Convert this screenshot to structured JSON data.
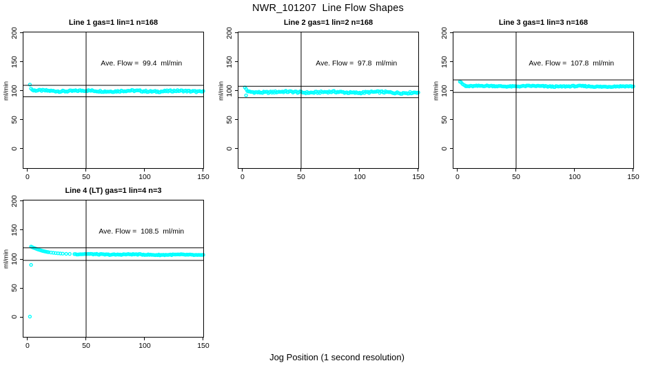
{
  "chart_data": {
    "type": "scatter",
    "title": "NWR_101207  Line Flow Shapes",
    "xlabel": "Jog Position (1 second resolution)",
    "ylabel": "ml/min",
    "point_color": "#00ffff",
    "axis_color": "#000000",
    "background_color": "#ffffff",
    "grid": false,
    "x_ticks": [
      0,
      50,
      100,
      150
    ],
    "y_ticks": [
      0,
      50,
      100,
      150,
      200
    ],
    "xlim": [
      -4.1,
      150.6
    ],
    "ylim": [
      -35,
      202
    ],
    "vline_x": 50,
    "panels": [
      {
        "title": "Line 1 gas=1 lin=1 n=168",
        "ave_flow_label": "Ave. Flow =  99.4  ml/min",
        "ave_flow_ml_min": 99.4,
        "n": 168,
        "ref_line_upper": 109.3,
        "ref_line_lower": 89.5,
        "start_points": [
          [
            2,
            110.5
          ],
          [
            3,
            103.5
          ],
          [
            4,
            101.5
          ],
          [
            5,
            100.5
          ]
        ],
        "outliers": [],
        "band": {
          "x0": 5,
          "x1": 150,
          "y_start": 99.8,
          "y_end": 99.0,
          "jitter": 1.6
        }
      },
      {
        "title": "Line 2 gas=1 lin=2 n=168",
        "ave_flow_label": "Ave. Flow =  97.8  ml/min",
        "ave_flow_ml_min": 97.8,
        "n": 168,
        "ref_line_upper": 107.6,
        "ref_line_lower": 88.0,
        "start_points": [
          [
            2,
            105.5
          ],
          [
            3,
            103.0
          ],
          [
            4,
            99.5
          ],
          [
            5,
            98.5
          ]
        ],
        "outliers": [
          [
            3,
            92
          ]
        ],
        "band": {
          "x0": 5,
          "x1": 150,
          "y_start": 97.8,
          "y_end": 96.8,
          "jitter": 1.8
        }
      },
      {
        "title": "Line 3 gas=1 lin=3 n=168",
        "ave_flow_label": "Ave. Flow =  107.8  ml/min",
        "ave_flow_ml_min": 107.8,
        "n": 168,
        "ref_line_upper": 118.6,
        "ref_line_lower": 97.0,
        "start_points": [
          [
            2,
            115.5
          ],
          [
            3,
            114.5
          ],
          [
            4,
            112.0
          ],
          [
            5,
            110.5
          ],
          [
            6,
            109.3
          ],
          [
            7,
            108.5
          ]
        ],
        "outliers": [],
        "band": {
          "x0": 7,
          "x1": 150,
          "y_start": 108.0,
          "y_end": 107.2,
          "jitter": 1.1
        }
      },
      {
        "title": "Line 4 (LT) gas=1 lin=4 n=3",
        "ave_flow_label": "Ave. Flow =  108.5  ml/min",
        "ave_flow_ml_min": 108.5,
        "n": 3,
        "ref_line_upper": 119.4,
        "ref_line_lower": 97.7,
        "start_points": [
          [
            3,
            121.5
          ],
          [
            4,
            120.5
          ],
          [
            5,
            119.5
          ],
          [
            6,
            118.8
          ],
          [
            7,
            118.0
          ],
          [
            8,
            117.2
          ],
          [
            9,
            116.5
          ],
          [
            10,
            115.8
          ],
          [
            11,
            115.2
          ],
          [
            12,
            114.6
          ],
          [
            13,
            114.0
          ],
          [
            14,
            113.5
          ],
          [
            15,
            113.0
          ],
          [
            16,
            112.6
          ],
          [
            17,
            112.2
          ],
          [
            18,
            111.8
          ],
          [
            20,
            111.2
          ],
          [
            22,
            110.7
          ],
          [
            24,
            110.3
          ],
          [
            26,
            109.9
          ],
          [
            28,
            109.6
          ],
          [
            30,
            109.3
          ],
          [
            33,
            109.0
          ],
          [
            36,
            108.8
          ],
          [
            40,
            108.6
          ]
        ],
        "outliers": [
          [
            3,
            90
          ],
          [
            2,
            1
          ]
        ],
        "band": {
          "x0": 41,
          "x1": 150,
          "y_start": 108.4,
          "y_end": 107.0,
          "jitter": 0.9
        }
      }
    ]
  }
}
